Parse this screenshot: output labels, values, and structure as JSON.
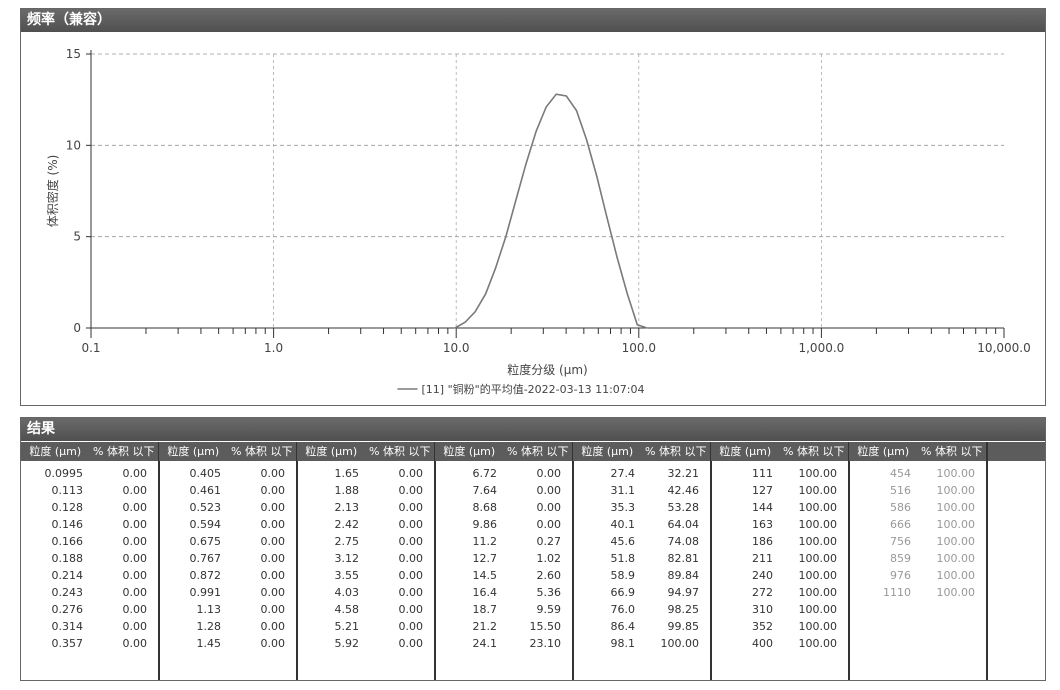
{
  "chart_panel": {
    "title": "频率（兼容）"
  },
  "chart_data": {
    "type": "line",
    "xscale": "log",
    "xlim": [
      0.1,
      10000
    ],
    "ylim": [
      0,
      15
    ],
    "xlabel": "粒度分级 (µm)",
    "ylabel": "体积密度 (%)",
    "x_ticks": [
      "0.1",
      "1.0",
      "10.0",
      "100.0",
      "1,000.0",
      "10,000.0"
    ],
    "y_ticks": [
      "0",
      "5",
      "10",
      "15"
    ],
    "grid": true,
    "legend_position": "bottom",
    "color": "#7a7a7a",
    "series": [
      {
        "name": "[11] \"铜粉\"的平均值-2022-03-13 11:07:04",
        "x": [
          9.86,
          11.2,
          12.7,
          14.5,
          16.4,
          18.7,
          21.2,
          24.1,
          27.4,
          31.1,
          35.3,
          40.1,
          45.6,
          51.8,
          58.9,
          66.9,
          76.0,
          86.4,
          98.1,
          111
        ],
        "y": [
          0,
          0.32,
          0.89,
          1.87,
          3.26,
          5.0,
          6.98,
          8.98,
          10.77,
          12.1,
          12.8,
          12.7,
          11.9,
          10.3,
          8.3,
          6.06,
          3.88,
          1.89,
          0.18,
          0
        ]
      }
    ]
  },
  "table_panel": {
    "title": "结果",
    "col_size": "粒度 (µm)",
    "col_pct": "% 体积 以下",
    "groups": [
      {
        "rows": [
          [
            "0.0995",
            "0.00"
          ],
          [
            "0.113",
            "0.00"
          ],
          [
            "0.128",
            "0.00"
          ],
          [
            "0.146",
            "0.00"
          ],
          [
            "0.166",
            "0.00"
          ],
          [
            "0.188",
            "0.00"
          ],
          [
            "0.214",
            "0.00"
          ],
          [
            "0.243",
            "0.00"
          ],
          [
            "0.276",
            "0.00"
          ],
          [
            "0.314",
            "0.00"
          ],
          [
            "0.357",
            "0.00"
          ]
        ]
      },
      {
        "rows": [
          [
            "0.405",
            "0.00"
          ],
          [
            "0.461",
            "0.00"
          ],
          [
            "0.523",
            "0.00"
          ],
          [
            "0.594",
            "0.00"
          ],
          [
            "0.675",
            "0.00"
          ],
          [
            "0.767",
            "0.00"
          ],
          [
            "0.872",
            "0.00"
          ],
          [
            "0.991",
            "0.00"
          ],
          [
            "1.13",
            "0.00"
          ],
          [
            "1.28",
            "0.00"
          ],
          [
            "1.45",
            "0.00"
          ]
        ]
      },
      {
        "rows": [
          [
            "1.65",
            "0.00"
          ],
          [
            "1.88",
            "0.00"
          ],
          [
            "2.13",
            "0.00"
          ],
          [
            "2.42",
            "0.00"
          ],
          [
            "2.75",
            "0.00"
          ],
          [
            "3.12",
            "0.00"
          ],
          [
            "3.55",
            "0.00"
          ],
          [
            "4.03",
            "0.00"
          ],
          [
            "4.58",
            "0.00"
          ],
          [
            "5.21",
            "0.00"
          ],
          [
            "5.92",
            "0.00"
          ]
        ]
      },
      {
        "rows": [
          [
            "6.72",
            "0.00"
          ],
          [
            "7.64",
            "0.00"
          ],
          [
            "8.68",
            "0.00"
          ],
          [
            "9.86",
            "0.00"
          ],
          [
            "11.2",
            "0.27"
          ],
          [
            "12.7",
            "1.02"
          ],
          [
            "14.5",
            "2.60"
          ],
          [
            "16.4",
            "5.36"
          ],
          [
            "18.7",
            "9.59"
          ],
          [
            "21.2",
            "15.50"
          ],
          [
            "24.1",
            "23.10"
          ]
        ]
      },
      {
        "rows": [
          [
            "27.4",
            "32.21"
          ],
          [
            "31.1",
            "42.46"
          ],
          [
            "35.3",
            "53.28"
          ],
          [
            "40.1",
            "64.04"
          ],
          [
            "45.6",
            "74.08"
          ],
          [
            "51.8",
            "82.81"
          ],
          [
            "58.9",
            "89.84"
          ],
          [
            "66.9",
            "94.97"
          ],
          [
            "76.0",
            "98.25"
          ],
          [
            "86.4",
            "99.85"
          ],
          [
            "98.1",
            "100.00"
          ]
        ]
      },
      {
        "rows": [
          [
            "111",
            "100.00"
          ],
          [
            "127",
            "100.00"
          ],
          [
            "144",
            "100.00"
          ],
          [
            "163",
            "100.00"
          ],
          [
            "186",
            "100.00"
          ],
          [
            "211",
            "100.00"
          ],
          [
            "240",
            "100.00"
          ],
          [
            "272",
            "100.00"
          ],
          [
            "310",
            "100.00"
          ],
          [
            "352",
            "100.00"
          ],
          [
            "400",
            "100.00"
          ]
        ]
      },
      {
        "rows": [
          [
            "454",
            "100.00"
          ],
          [
            "516",
            "100.00"
          ],
          [
            "586",
            "100.00"
          ],
          [
            "666",
            "100.00"
          ],
          [
            "756",
            "100.00"
          ],
          [
            "859",
            "100.00"
          ],
          [
            "976",
            "100.00"
          ],
          [
            "1110",
            "100.00"
          ]
        ]
      }
    ]
  }
}
